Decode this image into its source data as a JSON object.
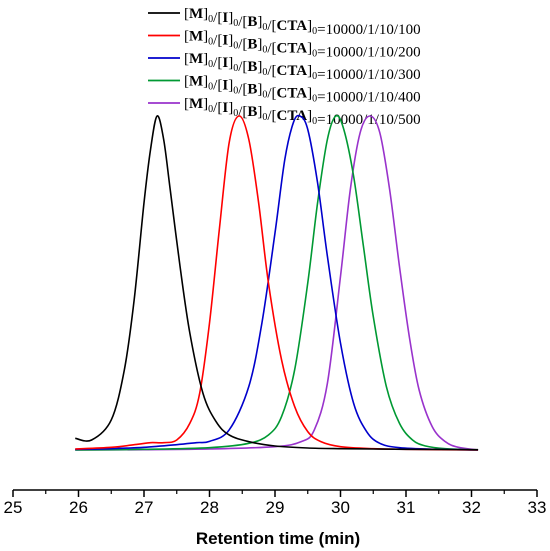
{
  "chart_data": {
    "type": "line",
    "xlabel": "Retention time (min)",
    "ylabel": "",
    "xlim": [
      25,
      33
    ],
    "x_ticks": [
      25,
      26,
      27,
      28,
      29,
      30,
      31,
      32,
      33
    ],
    "x_tick_labels": [
      "25",
      "26",
      "27",
      "28",
      "29",
      "30",
      "31",
      "32",
      "33"
    ],
    "y_axis_visible": false,
    "grid": false,
    "legend_position": "top-center",
    "series": [
      {
        "name_parts": [
          "[M]",
          "0",
          "/[I]",
          "0",
          "/[B]",
          "0",
          "/[CTA]",
          "0",
          "=10000/1/10/100"
        ],
        "color": "#000000",
        "peak_x": 27.2,
        "x": [
          25.95,
          26.2,
          26.5,
          26.7,
          26.85,
          27.0,
          27.1,
          27.2,
          27.3,
          27.4,
          27.55,
          27.7,
          27.9,
          28.1,
          28.3,
          28.6,
          29.0,
          29.5,
          30.0,
          30.5,
          31.0,
          32.1
        ],
        "values": [
          0.035,
          0.03,
          0.09,
          0.24,
          0.45,
          0.74,
          0.9,
          1.0,
          0.93,
          0.78,
          0.55,
          0.35,
          0.17,
          0.085,
          0.045,
          0.025,
          0.012,
          0.006,
          0.004,
          0.003,
          0.002,
          0.001
        ]
      },
      {
        "name_parts": [
          "[M]",
          "0",
          "/[I]",
          "0",
          "/[B]",
          "0",
          "/[CTA]",
          "0",
          "=10000/1/10/200"
        ],
        "color": "#ff0000",
        "peak_x": 28.45,
        "x": [
          25.95,
          26.5,
          26.9,
          27.1,
          27.3,
          27.5,
          27.7,
          27.85,
          28.0,
          28.15,
          28.3,
          28.45,
          28.6,
          28.75,
          28.9,
          29.1,
          29.3,
          29.5,
          29.7,
          30.0,
          30.5,
          31.0,
          32.1
        ],
        "values": [
          0.003,
          0.008,
          0.017,
          0.022,
          0.022,
          0.03,
          0.08,
          0.17,
          0.38,
          0.66,
          0.92,
          1.0,
          0.93,
          0.74,
          0.5,
          0.27,
          0.13,
          0.055,
          0.025,
          0.01,
          0.004,
          0.002,
          0.0
        ]
      },
      {
        "name_parts": [
          "[M]",
          "0",
          "/[I]",
          "0",
          "/[B]",
          "0",
          "/[CTA]",
          "0",
          "=10000/1/10/300"
        ],
        "color": "#0000cc",
        "peak_x": 29.38,
        "x": [
          25.95,
          26.5,
          27.0,
          27.5,
          27.8,
          28.0,
          28.3,
          28.6,
          28.8,
          29.0,
          29.15,
          29.28,
          29.38,
          29.5,
          29.65,
          29.8,
          30.0,
          30.2,
          30.4,
          30.6,
          30.9,
          31.5,
          32.1
        ],
        "values": [
          0.002,
          0.004,
          0.008,
          0.016,
          0.022,
          0.026,
          0.06,
          0.19,
          0.38,
          0.65,
          0.87,
          0.98,
          1.0,
          0.96,
          0.8,
          0.58,
          0.32,
          0.14,
          0.055,
          0.02,
          0.007,
          0.002,
          0.0
        ]
      },
      {
        "name_parts": [
          "[M]",
          "0",
          "/[I]",
          "0",
          "/[B]",
          "0",
          "/[CTA]",
          "0",
          "=10000/1/10/400"
        ],
        "color": "#009933",
        "peak_x": 29.93,
        "x": [
          25.95,
          27.0,
          28.0,
          28.6,
          28.9,
          29.1,
          29.3,
          29.5,
          29.65,
          29.8,
          29.93,
          30.05,
          30.2,
          30.35,
          30.5,
          30.7,
          30.9,
          31.1,
          31.3,
          31.6,
          32.1
        ],
        "values": [
          0.0,
          0.002,
          0.007,
          0.02,
          0.045,
          0.1,
          0.24,
          0.5,
          0.74,
          0.93,
          1.0,
          0.96,
          0.82,
          0.61,
          0.4,
          0.19,
          0.08,
          0.03,
          0.012,
          0.004,
          0.0
        ]
      },
      {
        "name_parts": [
          "[M]",
          "0",
          "/[I]",
          "0",
          "/[B]",
          "0",
          "/[CTA]",
          "0",
          "=10000/1/10/500"
        ],
        "color": "#9933cc",
        "peak_x": 30.45,
        "x": [
          25.95,
          27.0,
          28.0,
          29.0,
          29.4,
          29.6,
          29.8,
          30.0,
          30.15,
          30.3,
          30.45,
          30.6,
          30.75,
          30.9,
          31.05,
          31.2,
          31.4,
          31.6,
          31.8,
          32.1
        ],
        "values": [
          0.0,
          0.001,
          0.003,
          0.01,
          0.025,
          0.06,
          0.2,
          0.52,
          0.78,
          0.95,
          1.0,
          0.95,
          0.78,
          0.55,
          0.34,
          0.18,
          0.07,
          0.025,
          0.008,
          0.0
        ]
      }
    ]
  }
}
